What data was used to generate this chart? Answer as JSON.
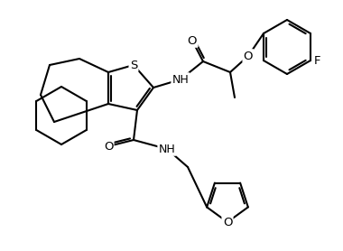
{
  "bg_color": "#ffffff",
  "line_color": "#000000",
  "lw": 1.5,
  "atoms": {
    "S": "S",
    "O": "O",
    "N": "N",
    "F": "F",
    "NH": "NH"
  }
}
